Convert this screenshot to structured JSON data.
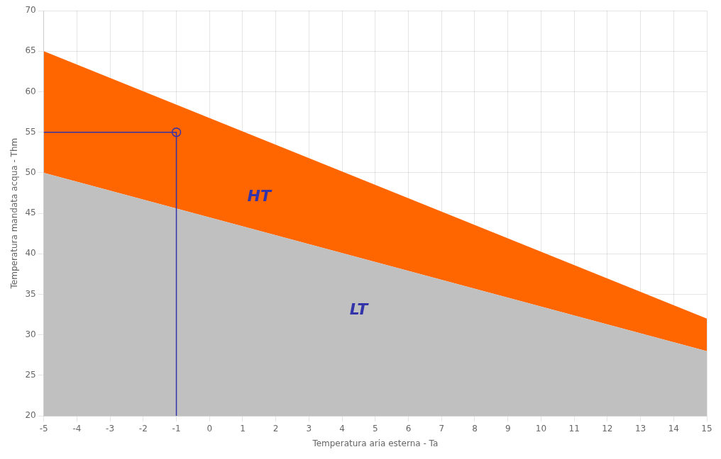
{
  "chart_data": {
    "type": "line",
    "xlabel": "Temperatura aria esterna - Ta",
    "ylabel": "Temperatura mandata acqua - Thm",
    "x": [
      -5,
      15
    ],
    "series": [
      {
        "type": "area",
        "color": "#C0C0C0",
        "values": [
          50,
          28
        ]
      },
      {
        "type": "area",
        "color": "#FF6600",
        "values": [
          65,
          32
        ]
      },
      {
        "type": "line",
        "color": "#3333AA",
        "x": [
          -5,
          -1,
          -1
        ],
        "values": [
          55,
          55,
          20
        ]
      },
      {
        "type": "scatter",
        "color": "#3333AA",
        "marker": "circle",
        "x": [
          -1
        ],
        "values": [
          55
        ]
      }
    ],
    "annotations": [
      {
        "text": "HT",
        "x": 1.5,
        "y": 47,
        "color": "#3333AA"
      },
      {
        "text": "LT",
        "x": 4.5,
        "y": 33,
        "color": "#3333AA"
      }
    ],
    "xlim": [
      -5,
      15
    ],
    "ylim": [
      20,
      70
    ],
    "xticks": [
      -5,
      -4,
      -3,
      -2,
      -1,
      0,
      1,
      2,
      3,
      4,
      5,
      6,
      7,
      8,
      9,
      10,
      11,
      12,
      13,
      14,
      15
    ],
    "yticks": [
      20,
      25,
      30,
      35,
      40,
      45,
      50,
      55,
      60,
      65,
      70
    ],
    "grid": true
  }
}
